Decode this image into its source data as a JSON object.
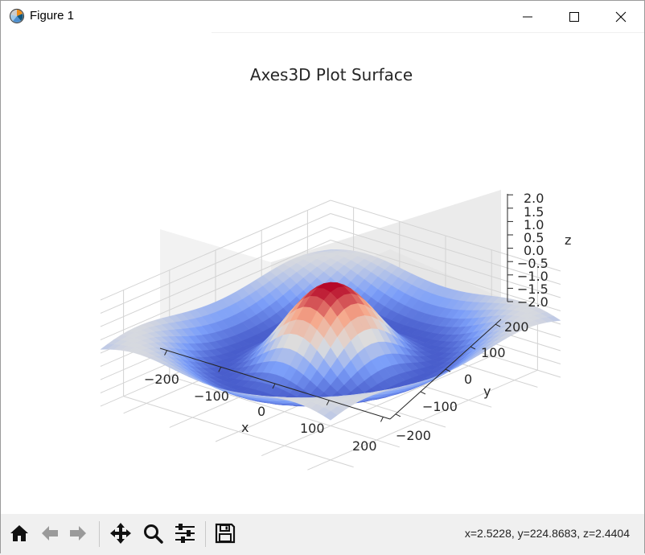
{
  "window": {
    "title": "Figure 1",
    "minimize_icon": "minimize-icon",
    "maximize_icon": "maximize-icon",
    "close_icon": "close-icon",
    "app_icon": "matplotlib-icon"
  },
  "toolbar": {
    "buttons": [
      {
        "name": "home-button",
        "icon": "home-icon"
      },
      {
        "name": "back-button",
        "icon": "arrow-left-icon"
      },
      {
        "name": "forward-button",
        "icon": "arrow-right-icon"
      },
      {
        "name": "pan-button",
        "icon": "move-icon"
      },
      {
        "name": "zoom-button",
        "icon": "magnifier-icon"
      },
      {
        "name": "configure-subplots-button",
        "icon": "sliders-icon"
      },
      {
        "name": "save-button",
        "icon": "floppy-disk-icon"
      }
    ],
    "coordinates": "x=2.5228, y=224.8683, z=2.4404"
  },
  "chart_data": {
    "type": "surface",
    "title": "Axes3D Plot Surface",
    "xlabel": "x",
    "ylabel": "y",
    "zlabel": "z",
    "xlim": [
      -250,
      250
    ],
    "ylim": [
      -250,
      250
    ],
    "zlim": [
      -2.0,
      2.0
    ],
    "x_ticks": [
      "−200",
      "−100",
      "0",
      "100",
      "200"
    ],
    "y_ticks": [
      "−200",
      "−100",
      "0",
      "100",
      "200"
    ],
    "z_ticks": [
      "−2.0",
      "−1.5",
      "−1.0",
      "−0.5",
      "0.0",
      "0.5",
      "1.0",
      "1.5",
      "2.0"
    ],
    "colormap": "coolwarm",
    "z_min": -1.1,
    "z_max": 2.0,
    "peak": {
      "x": 0,
      "y": 0,
      "z": 2.0
    },
    "grid": true,
    "pane_color": "#f2f2f2",
    "grid_color": "#d6d6d6"
  }
}
